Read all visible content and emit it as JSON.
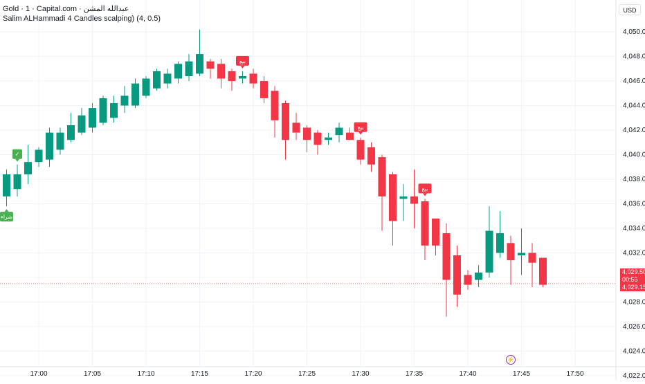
{
  "header": {
    "symbol_line": "Gold · 1 · Capital.com · عبدالله المشن",
    "indicator_line": "Salim ALHammadi 4 Candles scalping) (4, 0.5)"
  },
  "currency": "USD",
  "price_tags": {
    "last_price": "4,029.50",
    "countdown": "00:55",
    "second_price": "4,029.15"
  },
  "colors": {
    "up": "#089981",
    "down": "#f23645",
    "buy_label": "#4caf50",
    "sell_label": "#f23645",
    "grid": "#f0f3fa"
  },
  "icons": {
    "lightning": "lightning-icon"
  },
  "chart_data": {
    "type": "candlestick",
    "title": "Gold · 1 · Capital.com",
    "x_ticks": [
      "17:00",
      "17:05",
      "17:10",
      "17:15",
      "17:20",
      "17:25",
      "17:30",
      "17:35",
      "17:40",
      "17:45",
      "17:50"
    ],
    "y_ticks": [
      "4,022.00",
      "4,024.00",
      "4,026.00",
      "4,028.00",
      "4,030.00",
      "4,032.00",
      "4,034.00",
      "4,036.00",
      "4,038.00",
      "4,040.00",
      "4,042.00",
      "4,044.00",
      "4,046.00",
      "4,048.00",
      "4,050.00"
    ],
    "ylim": [
      4021.6,
      4052.6
    ],
    "grid": true,
    "candles": [
      {
        "time": "16:57",
        "o": 4036.6,
        "h": 4038.8,
        "l": 4035.8,
        "c": 4038.4
      },
      {
        "time": "16:58",
        "o": 4037.2,
        "h": 4039.2,
        "l": 4036.6,
        "c": 4038.4
      },
      {
        "time": "16:59",
        "o": 4038.4,
        "h": 4040.8,
        "l": 4037.6,
        "c": 4039.4
      },
      {
        "time": "17:00",
        "o": 4039.4,
        "h": 4040.6,
        "l": 4039.0,
        "c": 4040.4
      },
      {
        "time": "17:01",
        "o": 4039.6,
        "h": 4042.2,
        "l": 4039.0,
        "c": 4041.8
      },
      {
        "time": "17:02",
        "o": 4040.4,
        "h": 4042.2,
        "l": 4040.0,
        "c": 4041.8
      },
      {
        "time": "17:03",
        "o": 4041.2,
        "h": 4043.4,
        "l": 4041.0,
        "c": 4042.4
      },
      {
        "time": "17:04",
        "o": 4041.8,
        "h": 4043.8,
        "l": 4041.6,
        "c": 4043.2
      },
      {
        "time": "17:05",
        "o": 4042.2,
        "h": 4044.2,
        "l": 4041.8,
        "c": 4043.8
      },
      {
        "time": "17:06",
        "o": 4042.6,
        "h": 4044.8,
        "l": 4042.4,
        "c": 4044.6
      },
      {
        "time": "17:07",
        "o": 4043.0,
        "h": 4044.8,
        "l": 4042.6,
        "c": 4044.2
      },
      {
        "time": "17:08",
        "o": 4044.0,
        "h": 4045.6,
        "l": 4043.4,
        "c": 4044.8
      },
      {
        "time": "17:09",
        "o": 4044.0,
        "h": 4046.2,
        "l": 4043.8,
        "c": 4045.8
      },
      {
        "time": "17:10",
        "o": 4044.8,
        "h": 4046.4,
        "l": 4044.6,
        "c": 4046.2
      },
      {
        "time": "17:11",
        "o": 4045.4,
        "h": 4047.0,
        "l": 4045.2,
        "c": 4046.8
      },
      {
        "time": "17:12",
        "o": 4045.8,
        "h": 4047.0,
        "l": 4045.4,
        "c": 4046.6
      },
      {
        "time": "17:13",
        "o": 4046.2,
        "h": 4047.6,
        "l": 4045.8,
        "c": 4047.4
      },
      {
        "time": "17:14",
        "o": 4046.4,
        "h": 4048.2,
        "l": 4046.0,
        "c": 4047.6
      },
      {
        "time": "17:15",
        "o": 4046.6,
        "h": 4050.2,
        "l": 4046.4,
        "c": 4048.2
      },
      {
        "time": "17:16",
        "o": 4047.6,
        "h": 4047.8,
        "l": 4046.2,
        "c": 4047.0
      },
      {
        "time": "17:17",
        "o": 4047.4,
        "h": 4047.8,
        "l": 4045.4,
        "c": 4046.2
      },
      {
        "time": "17:18",
        "o": 4046.8,
        "h": 4047.0,
        "l": 4045.2,
        "c": 4046.0
      },
      {
        "time": "17:19",
        "o": 4046.2,
        "h": 4046.8,
        "l": 4045.8,
        "c": 4046.4
      },
      {
        "time": "17:20",
        "o": 4046.6,
        "h": 4047.0,
        "l": 4045.4,
        "c": 4045.8
      },
      {
        "time": "17:21",
        "o": 4046.0,
        "h": 4046.4,
        "l": 4044.2,
        "c": 4044.6
      },
      {
        "time": "17:22",
        "o": 4045.2,
        "h": 4045.6,
        "l": 4041.4,
        "c": 4042.8
      },
      {
        "time": "17:23",
        "o": 4044.2,
        "h": 4044.4,
        "l": 4039.6,
        "c": 4041.2
      },
      {
        "time": "17:24",
        "o": 4042.6,
        "h": 4043.4,
        "l": 4041.2,
        "c": 4041.8
      },
      {
        "time": "17:25",
        "o": 4042.2,
        "h": 4042.4,
        "l": 4040.2,
        "c": 4041.2
      },
      {
        "time": "17:26",
        "o": 4041.8,
        "h": 4042.0,
        "l": 4040.0,
        "c": 4040.8
      },
      {
        "time": "17:27",
        "o": 4041.2,
        "h": 4041.8,
        "l": 4040.8,
        "c": 4041.4
      },
      {
        "time": "17:28",
        "o": 4041.6,
        "h": 4042.6,
        "l": 4041.0,
        "c": 4042.2
      },
      {
        "time": "17:29",
        "o": 4041.8,
        "h": 4042.2,
        "l": 4041.2,
        "c": 4041.2
      },
      {
        "time": "17:30",
        "o": 4041.2,
        "h": 4041.4,
        "l": 4039.2,
        "c": 4039.6
      },
      {
        "time": "17:31",
        "o": 4040.6,
        "h": 4041.0,
        "l": 4038.6,
        "c": 4039.2
      },
      {
        "time": "17:32",
        "o": 4039.8,
        "h": 4040.0,
        "l": 4033.8,
        "c": 4036.6
      },
      {
        "time": "17:33",
        "o": 4038.4,
        "h": 4038.6,
        "l": 4032.6,
        "c": 4034.6
      },
      {
        "time": "17:34",
        "o": 4036.4,
        "h": 4037.6,
        "l": 4034.6,
        "c": 4036.6
      },
      {
        "time": "17:35",
        "o": 4036.6,
        "h": 4038.8,
        "l": 4034.0,
        "c": 4036.0
      },
      {
        "time": "17:36",
        "o": 4036.2,
        "h": 4036.4,
        "l": 4031.4,
        "c": 4032.6
      },
      {
        "time": "17:37",
        "o": 4034.8,
        "h": 4034.8,
        "l": 4031.8,
        "c": 4032.6
      },
      {
        "time": "17:38",
        "o": 4033.6,
        "h": 4034.4,
        "l": 4026.8,
        "c": 4029.8
      },
      {
        "time": "17:39",
        "o": 4031.8,
        "h": 4032.6,
        "l": 4027.6,
        "c": 4028.6
      },
      {
        "time": "17:40",
        "o": 4030.2,
        "h": 4030.6,
        "l": 4029.0,
        "c": 4029.4
      },
      {
        "time": "17:41",
        "o": 4029.8,
        "h": 4031.0,
        "l": 4029.2,
        "c": 4030.4
      },
      {
        "time": "17:42",
        "o": 4030.4,
        "h": 4035.8,
        "l": 4030.0,
        "c": 4033.8
      },
      {
        "time": "17:43",
        "o": 4032.0,
        "h": 4035.4,
        "l": 4031.6,
        "c": 4033.6
      },
      {
        "time": "17:44",
        "o": 4032.8,
        "h": 4033.4,
        "l": 4029.4,
        "c": 4031.4
      },
      {
        "time": "17:45",
        "o": 4031.8,
        "h": 4034.0,
        "l": 4030.2,
        "c": 4032.0
      },
      {
        "time": "17:46",
        "o": 4032.0,
        "h": 4032.8,
        "l": 4029.2,
        "c": 4031.2
      },
      {
        "time": "17:47",
        "o": 4031.6,
        "h": 4031.6,
        "l": 4029.2,
        "c": 4029.4
      }
    ],
    "signals": [
      {
        "candle": 0,
        "kind": "buy",
        "text": "شراء",
        "placement": "below"
      },
      {
        "candle": 1,
        "kind": "buy",
        "text": "✓",
        "placement": "above"
      },
      {
        "candle": 22,
        "kind": "sell",
        "text": "بيع",
        "placement": "above"
      },
      {
        "candle": 33,
        "kind": "sell",
        "text": "بيع",
        "placement": "above"
      },
      {
        "candle": 39,
        "kind": "sell",
        "text": "بيع",
        "placement": "above"
      }
    ],
    "price_lines": [
      {
        "value": 4029.5,
        "style": "dotted"
      }
    ]
  }
}
